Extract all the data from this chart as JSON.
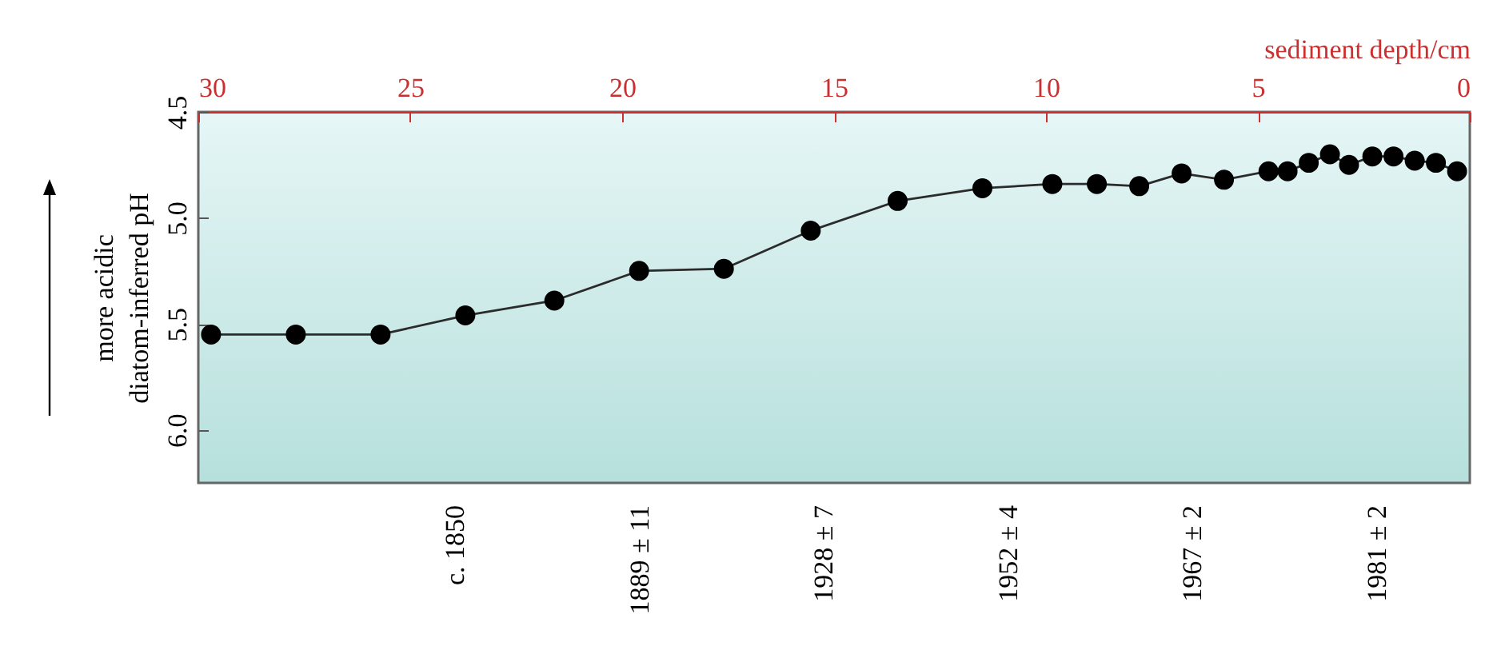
{
  "chart_data": {
    "type": "line",
    "xlabel": "sediment depth/cm",
    "ylabel": "diatom-inferred pH",
    "annotations": [
      "more acidic",
      "c. 1850",
      "1889 ± 11",
      "1928 ± 7",
      "1952 ± 4",
      "1967 ± 2",
      "1981 ± 2"
    ],
    "x": [
      29.7,
      27.7,
      25.7,
      23.7,
      21.6,
      19.6,
      17.6,
      15.55,
      13.5,
      11.5,
      9.85,
      8.8,
      7.8,
      6.8,
      5.8,
      4.75,
      4.3,
      3.8,
      3.3,
      2.85,
      2.3,
      1.8,
      1.3,
      0.8,
      0.3
    ],
    "series": [
      {
        "color": "#2b2b2b",
        "values": [
          5.55,
          5.55,
          5.55,
          5.46,
          5.39,
          5.25,
          5.24,
          5.06,
          4.92,
          4.86,
          4.84,
          4.84,
          4.85,
          4.79,
          4.82,
          4.78,
          4.78,
          4.74,
          4.7,
          4.75,
          4.71,
          4.71,
          4.73,
          4.74,
          4.78
        ]
      }
    ],
    "xlim": [
      30,
      0
    ],
    "xticks": [
      30,
      25,
      20,
      15,
      10,
      5,
      0
    ],
    "ylim": [
      6.25,
      4.5
    ],
    "yticks": [
      4.5,
      {
        "value": 5,
        "label": "5.0"
      },
      5.5,
      {
        "value": 6,
        "label": "6.0"
      }
    ],
    "marker": "circle",
    "grid": false,
    "legend": false
  }
}
